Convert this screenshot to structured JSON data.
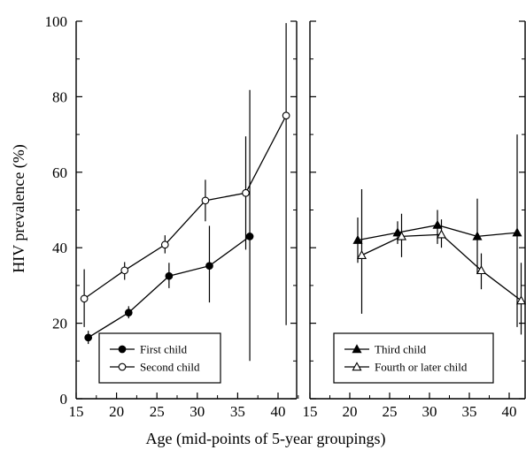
{
  "chart_data": {
    "type": "line",
    "xlabel": "Age (mid-points of 5-year groupings)",
    "ylabel": "HIV prevalence (%)",
    "ylim": [
      0,
      100
    ],
    "yticks": [
      0,
      20,
      40,
      60,
      80,
      100
    ],
    "grid": false,
    "panels": [
      {
        "xlim": [
          15,
          42.5
        ],
        "xticks": [
          15,
          20,
          25,
          30,
          35,
          40
        ],
        "legend_position": "bottom-left",
        "series": [
          {
            "name": "First child",
            "marker": "filled-circle",
            "x": [
              16.5,
              21.5,
              26.5,
              31.5,
              36.5
            ],
            "y": [
              16.2,
              22.8,
              32.5,
              35.2,
              43.0
            ],
            "error_low": [
              14.5,
              21.3,
              29.3,
              25.5,
              10.0
            ],
            "error_high": [
              18.0,
              24.5,
              36.0,
              45.8,
              81.8
            ]
          },
          {
            "name": "Second child",
            "marker": "open-circle",
            "x": [
              16.0,
              21.0,
              26.0,
              31.0,
              36.0,
              41.0
            ],
            "y": [
              26.5,
              34.0,
              40.8,
              52.5,
              54.5,
              75.0
            ],
            "error_low": [
              19.0,
              31.5,
              38.5,
              47.0,
              39.5,
              19.5
            ],
            "error_high": [
              34.3,
              36.2,
              43.3,
              58.0,
              69.5,
              99.5
            ]
          }
        ]
      },
      {
        "xlim": [
          15,
          42.5
        ],
        "xticks": [
          15,
          20,
          25,
          30,
          35,
          40
        ],
        "legend_position": "bottom-left",
        "series": [
          {
            "name": "Third child",
            "marker": "filled-triangle",
            "x": [
              21.0,
              26.0,
              31.0,
              36.0,
              41.0
            ],
            "y": [
              42.0,
              44.0,
              46.0,
              43.0,
              44.0
            ],
            "error_low": [
              36.0,
              41.0,
              41.0,
              33.0,
              19.0
            ],
            "error_high": [
              48.0,
              47.0,
              50.0,
              53.0,
              70.0
            ]
          },
          {
            "name": "Fourth or later child",
            "marker": "open-triangle",
            "x": [
              21.5,
              26.5,
              31.5,
              36.5,
              41.5
            ],
            "y": [
              38.0,
              43.0,
              43.5,
              34.0,
              26.0
            ],
            "error_low": [
              22.5,
              37.5,
              40.0,
              29.0,
              17.0
            ],
            "error_high": [
              55.5,
              49.0,
              47.5,
              38.5,
              36.0
            ]
          }
        ]
      }
    ]
  }
}
